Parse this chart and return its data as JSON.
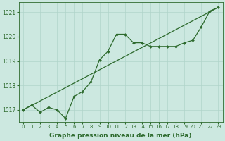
{
  "line1_x": [
    0,
    1,
    2,
    3,
    4,
    5,
    6,
    7,
    8,
    9,
    10,
    11,
    12,
    13,
    14,
    15,
    16,
    17,
    18,
    19,
    20,
    21,
    22,
    23
  ],
  "line1_y": [
    1017.0,
    1017.2,
    1016.9,
    1017.1,
    1017.0,
    1016.65,
    1017.55,
    1017.75,
    1018.15,
    1019.05,
    1019.4,
    1020.1,
    1020.1,
    1019.75,
    1019.75,
    1019.6,
    1019.6,
    1019.6,
    1019.6,
    1019.75,
    1019.85,
    1020.4,
    1021.05,
    1021.2
  ],
  "line2_x": [
    0,
    23
  ],
  "line2_y": [
    1017.0,
    1021.2
  ],
  "line_color": "#2d6a2d",
  "bg_color": "#cce8e0",
  "grid_color": "#b0d4ca",
  "title": "Graphe pression niveau de la mer (hPa)",
  "ylim": [
    1016.5,
    1021.4
  ],
  "xlim": [
    -0.5,
    23.5
  ],
  "yticks": [
    1017,
    1018,
    1019,
    1020,
    1021
  ],
  "xticks": [
    0,
    1,
    2,
    3,
    4,
    5,
    6,
    7,
    8,
    9,
    10,
    11,
    12,
    13,
    14,
    15,
    16,
    17,
    18,
    19,
    20,
    21,
    22,
    23
  ]
}
